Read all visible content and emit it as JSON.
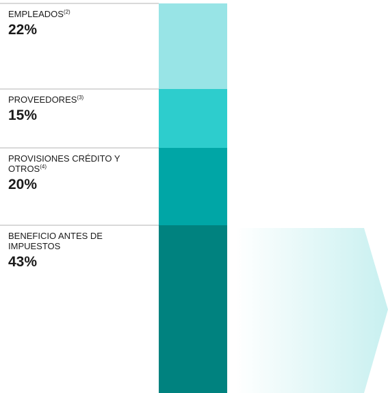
{
  "chart_data": {
    "type": "stacked_bar",
    "categories": [
      "EMPLEADOS",
      "PROVEEDORES",
      "PROVISIONES CRÉDITO Y OTROS",
      "BENEFICIO ANTES DE IMPUESTOS"
    ],
    "notes": [
      "(2)",
      "(3)",
      "(4)",
      null
    ],
    "values": [
      22,
      15,
      20,
      43
    ],
    "value_labels": [
      "22%",
      "15%",
      "20%",
      "43%"
    ],
    "colors": [
      "#98e4e6",
      "#2dcdcd",
      "#00a6a6",
      "#00827f"
    ],
    "ylim": [
      0,
      100
    ]
  }
}
